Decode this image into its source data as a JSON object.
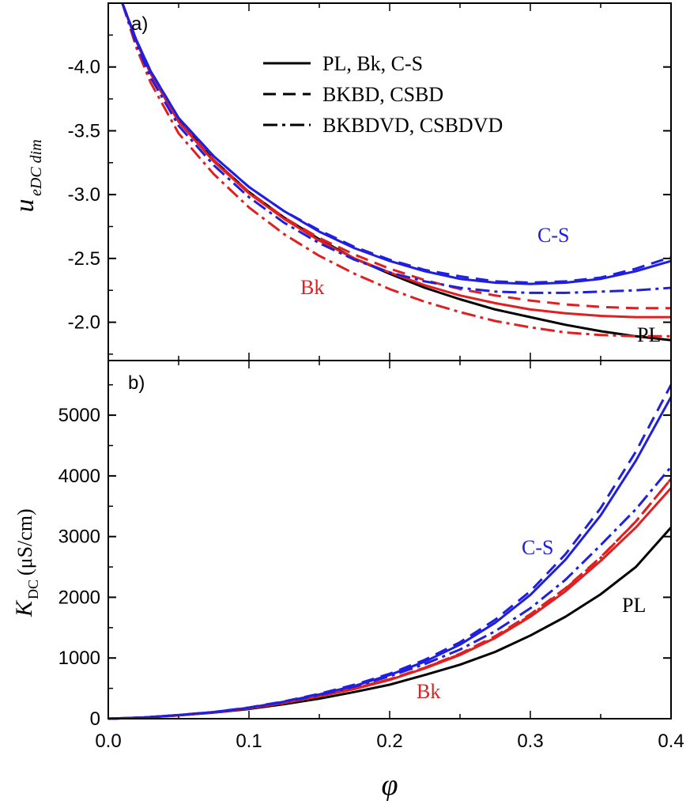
{
  "chart_data": [
    {
      "type": "line",
      "panel_label": "a)",
      "ylabel_main": "u",
      "ylabel_sub": "eDC dim",
      "xlim": [
        0.0,
        0.4
      ],
      "ylim": [
        -1.7,
        -4.5
      ],
      "y_inverted": true,
      "yticks": [
        "-4.0",
        "-3.5",
        "-3.0",
        "-2.5",
        "-2.0"
      ],
      "ytick_values": [
        -4.0,
        -3.5,
        -3.0,
        -2.5,
        -2.0
      ],
      "legend": {
        "placement": "top-right",
        "entries": [
          {
            "label": "PL, Bk, C-S",
            "style": "solid"
          },
          {
            "label": "BKBD, CSBD",
            "style": "dashed"
          },
          {
            "label": "BKBDVD, CSBDVD",
            "style": "dashdot"
          }
        ]
      },
      "annotations": [
        {
          "text": "C-S",
          "color": "#1f1fe0",
          "x": 0.31,
          "y": -2.55
        },
        {
          "text": "Bk",
          "color": "#e02020",
          "x": 0.145,
          "y": -2.1
        },
        {
          "text": "PL",
          "color": "#000000",
          "x": 0.385,
          "y": -1.75
        }
      ],
      "series": [
        {
          "color": "#000000",
          "dash": "solid",
          "x": [
            0.01,
            0.02,
            0.03,
            0.05,
            0.075,
            0.1,
            0.125,
            0.15,
            0.175,
            0.2,
            0.225,
            0.25,
            0.275,
            0.3,
            0.325,
            0.35,
            0.375,
            0.4
          ],
          "y": [
            -4.5,
            -4.2,
            -3.95,
            -3.58,
            -3.27,
            -3.02,
            -2.82,
            -2.65,
            -2.5,
            -2.38,
            -2.27,
            -2.18,
            -2.1,
            -2.04,
            -1.98,
            -1.93,
            -1.89,
            -1.86
          ]
        },
        {
          "color": "#e02020",
          "dash": "solid",
          "x": [
            0.01,
            0.02,
            0.03,
            0.05,
            0.075,
            0.1,
            0.125,
            0.15,
            0.175,
            0.2,
            0.225,
            0.25,
            0.275,
            0.3,
            0.325,
            0.35,
            0.375,
            0.4
          ],
          "y": [
            -4.5,
            -4.2,
            -3.95,
            -3.57,
            -3.26,
            -3.01,
            -2.81,
            -2.64,
            -2.5,
            -2.39,
            -2.29,
            -2.21,
            -2.15,
            -2.1,
            -2.07,
            -2.05,
            -2.04,
            -2.04
          ]
        },
        {
          "color": "#1f1fe0",
          "dash": "solid",
          "x": [
            0.01,
            0.02,
            0.03,
            0.05,
            0.075,
            0.1,
            0.125,
            0.15,
            0.175,
            0.2,
            0.225,
            0.25,
            0.275,
            0.3,
            0.325,
            0.35,
            0.375,
            0.4
          ],
          "y": [
            -4.5,
            -4.21,
            -3.97,
            -3.6,
            -3.3,
            -3.06,
            -2.87,
            -2.71,
            -2.58,
            -2.48,
            -2.4,
            -2.34,
            -2.31,
            -2.3,
            -2.31,
            -2.34,
            -2.4,
            -2.48
          ]
        },
        {
          "color": "#e02020",
          "dash": "dashed",
          "x": [
            0.01,
            0.02,
            0.03,
            0.05,
            0.075,
            0.1,
            0.125,
            0.15,
            0.175,
            0.2,
            0.225,
            0.25,
            0.275,
            0.3,
            0.325,
            0.35,
            0.375,
            0.4
          ],
          "y": [
            -4.5,
            -4.21,
            -3.96,
            -3.58,
            -3.27,
            -3.02,
            -2.82,
            -2.66,
            -2.53,
            -2.42,
            -2.33,
            -2.26,
            -2.21,
            -2.17,
            -2.14,
            -2.12,
            -2.11,
            -2.11
          ]
        },
        {
          "color": "#1f1fe0",
          "dash": "dashed",
          "x": [
            0.01,
            0.02,
            0.03,
            0.05,
            0.075,
            0.1,
            0.125,
            0.15,
            0.175,
            0.2,
            0.225,
            0.25,
            0.275,
            0.3,
            0.325,
            0.35,
            0.375,
            0.4
          ],
          "y": [
            -4.5,
            -4.21,
            -3.97,
            -3.6,
            -3.3,
            -3.06,
            -2.87,
            -2.72,
            -2.59,
            -2.49,
            -2.41,
            -2.36,
            -2.32,
            -2.31,
            -2.32,
            -2.35,
            -2.42,
            -2.51
          ]
        },
        {
          "color": "#e02020",
          "dash": "dashdot",
          "x": [
            0.01,
            0.02,
            0.03,
            0.05,
            0.075,
            0.1,
            0.125,
            0.15,
            0.175,
            0.2,
            0.225,
            0.25,
            0.275,
            0.3,
            0.325,
            0.35,
            0.375,
            0.4
          ],
          "y": [
            -4.5,
            -4.15,
            -3.88,
            -3.48,
            -3.16,
            -2.9,
            -2.69,
            -2.52,
            -2.38,
            -2.26,
            -2.16,
            -2.08,
            -2.01,
            -1.96,
            -1.92,
            -1.9,
            -1.89,
            -1.89
          ]
        },
        {
          "color": "#1f1fe0",
          "dash": "dashdot",
          "x": [
            0.01,
            0.02,
            0.03,
            0.05,
            0.075,
            0.1,
            0.125,
            0.15,
            0.175,
            0.2,
            0.225,
            0.25,
            0.275,
            0.3,
            0.325,
            0.35,
            0.375,
            0.4
          ],
          "y": [
            -4.5,
            -4.18,
            -3.92,
            -3.54,
            -3.23,
            -2.98,
            -2.78,
            -2.62,
            -2.49,
            -2.39,
            -2.32,
            -2.27,
            -2.24,
            -2.23,
            -2.23,
            -2.24,
            -2.25,
            -2.27
          ]
        }
      ]
    },
    {
      "type": "line",
      "panel_label": "b)",
      "ylabel_main": "K",
      "ylabel_sub": "DC",
      "ylabel_unit": "(μS/cm)",
      "xlabel": "φ",
      "xlim": [
        0.0,
        0.4
      ],
      "ylim": [
        0,
        5900
      ],
      "xticks": [
        "0.0",
        "0.1",
        "0.2",
        "0.3",
        "0.4"
      ],
      "xtick_values": [
        0.0,
        0.1,
        0.2,
        0.3,
        0.4
      ],
      "yticks": [
        "0",
        "1000",
        "2000",
        "3000",
        "4000",
        "5000"
      ],
      "ytick_values": [
        0,
        1000,
        2000,
        3000,
        4000,
        5000
      ],
      "annotations": [
        {
          "text": "C-S",
          "color": "#1f1fe0",
          "x": 0.3,
          "y": 2880
        },
        {
          "text": "Bk",
          "color": "#e02020",
          "x": 0.22,
          "y": 310
        },
        {
          "text": "PL",
          "color": "#000000",
          "x": 0.375,
          "y": 1900
        }
      ],
      "series": [
        {
          "color": "#000000",
          "dash": "solid",
          "x": [
            0,
            0.025,
            0.05,
            0.075,
            0.1,
            0.125,
            0.15,
            0.175,
            0.2,
            0.225,
            0.25,
            0.275,
            0.3,
            0.325,
            0.35,
            0.375,
            0.4
          ],
          "y": [
            0,
            20,
            55,
            100,
            160,
            240,
            330,
            440,
            560,
            720,
            890,
            1100,
            1370,
            1680,
            2050,
            2500,
            3150
          ]
        },
        {
          "color": "#e02020",
          "dash": "solid",
          "x": [
            0,
            0.025,
            0.05,
            0.075,
            0.1,
            0.125,
            0.15,
            0.175,
            0.2,
            0.225,
            0.25,
            0.275,
            0.3,
            0.325,
            0.35,
            0.375,
            0.4
          ],
          "y": [
            0,
            20,
            55,
            105,
            170,
            260,
            370,
            490,
            640,
            830,
            1050,
            1330,
            1680,
            2100,
            2600,
            3150,
            3800
          ]
        },
        {
          "color": "#1f1fe0",
          "dash": "solid",
          "x": [
            0,
            0.025,
            0.05,
            0.075,
            0.1,
            0.125,
            0.15,
            0.175,
            0.2,
            0.225,
            0.25,
            0.275,
            0.3,
            0.325,
            0.35,
            0.375,
            0.4
          ],
          "y": [
            0,
            20,
            60,
            110,
            180,
            280,
            400,
            540,
            720,
            940,
            1220,
            1580,
            2040,
            2620,
            3350,
            4250,
            5300
          ]
        },
        {
          "color": "#e02020",
          "dash": "dashed",
          "x": [
            0,
            0.025,
            0.05,
            0.075,
            0.1,
            0.125,
            0.15,
            0.175,
            0.2,
            0.225,
            0.25,
            0.275,
            0.3,
            0.325,
            0.35,
            0.375,
            0.4
          ],
          "y": [
            0,
            20,
            55,
            105,
            170,
            260,
            370,
            500,
            650,
            840,
            1070,
            1360,
            1720,
            2150,
            2660,
            3250,
            3950
          ]
        },
        {
          "color": "#1f1fe0",
          "dash": "dashed",
          "x": [
            0,
            0.025,
            0.05,
            0.075,
            0.1,
            0.125,
            0.15,
            0.175,
            0.2,
            0.225,
            0.25,
            0.275,
            0.3,
            0.325,
            0.35,
            0.375,
            0.4
          ],
          "y": [
            0,
            20,
            60,
            110,
            185,
            285,
            410,
            560,
            740,
            970,
            1260,
            1630,
            2100,
            2710,
            3470,
            4400,
            5500
          ]
        },
        {
          "color": "#e02020",
          "dash": "dashdot",
          "x": [
            0,
            0.025,
            0.05,
            0.075,
            0.1,
            0.125,
            0.15,
            0.175,
            0.2,
            0.225,
            0.25,
            0.275,
            0.3,
            0.325,
            0.35,
            0.375,
            0.4
          ],
          "y": [
            0,
            20,
            55,
            105,
            170,
            260,
            370,
            500,
            650,
            840,
            1060,
            1340,
            1700,
            2140,
            2650,
            3250,
            3950
          ]
        },
        {
          "color": "#1f1fe0",
          "dash": "dashdot",
          "x": [
            0,
            0.025,
            0.05,
            0.075,
            0.1,
            0.125,
            0.15,
            0.175,
            0.2,
            0.225,
            0.25,
            0.275,
            0.3,
            0.325,
            0.35,
            0.375,
            0.4
          ],
          "y": [
            0,
            20,
            60,
            110,
            180,
            275,
            390,
            530,
            700,
            900,
            1140,
            1440,
            1820,
            2290,
            2860,
            3450,
            4150
          ]
        }
      ]
    }
  ]
}
